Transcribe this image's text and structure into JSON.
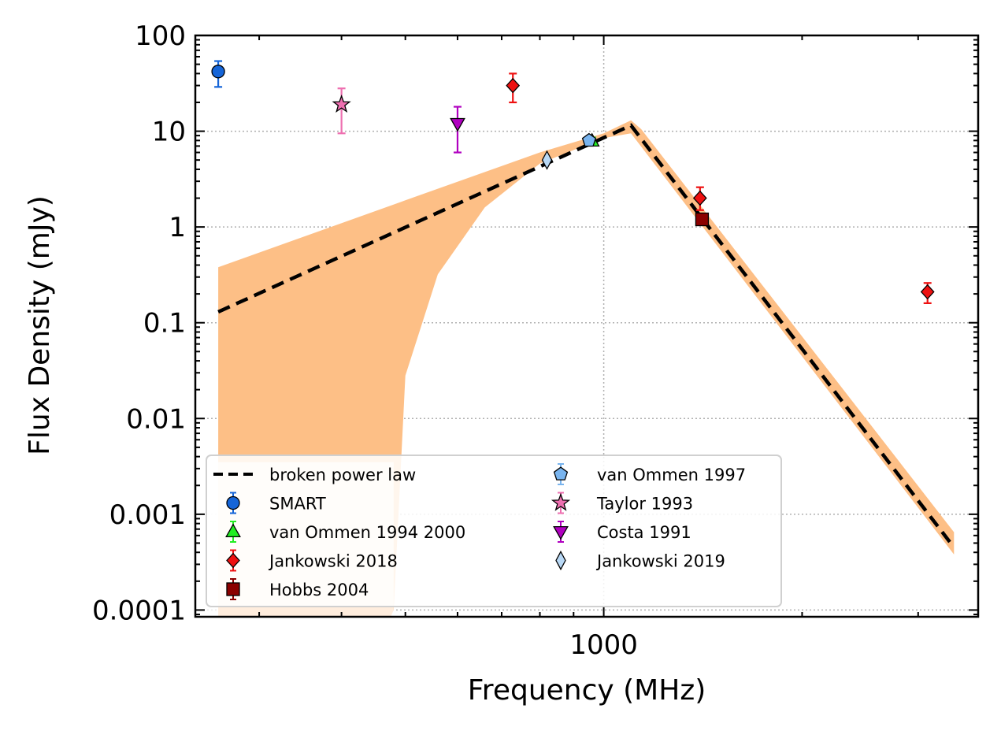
{
  "chart_data": {
    "type": "scatter",
    "xlabel": "Frequency (MHz)",
    "ylabel": "Flux Density (mJy)",
    "xscale": "log",
    "yscale": "log",
    "xlim": [
      240,
      3700
    ],
    "ylim": [
      8.5e-05,
      100
    ],
    "x_tick_labels": [
      {
        "value": 1000,
        "label": "1000"
      }
    ],
    "y_tick_labels": [
      {
        "value": 100,
        "label": "100"
      },
      {
        "value": 10,
        "label": "10"
      },
      {
        "value": 1,
        "label": "1"
      },
      {
        "value": 0.1,
        "label": "0.1"
      },
      {
        "value": 0.01,
        "label": "0.01"
      },
      {
        "value": 0.001,
        "label": "0.001"
      },
      {
        "value": 0.0001,
        "label": "0.0001"
      }
    ],
    "grid": true,
    "legend_placement": "lower-left",
    "model": {
      "name": "broken power law",
      "type": "broken power law",
      "color": "#000000",
      "points": [
        [
          260,
          0.13
        ],
        [
          1100,
          11.5
        ],
        [
          3400,
          0.00045
        ]
      ]
    },
    "uncertainty_band": {
      "color": "#fdbf86",
      "upper": [
        [
          260,
          0.38
        ],
        [
          500,
          1.9
        ],
        [
          800,
          6.0
        ],
        [
          1000,
          9.5
        ],
        [
          1100,
          13
        ],
        [
          1140,
          10.5
        ],
        [
          3400,
          0.00065
        ]
      ],
      "lower": [
        [
          3400,
          0.00038
        ],
        [
          1100,
          9.5
        ],
        [
          1000,
          8.5
        ],
        [
          800,
          4.6
        ],
        [
          660,
          1.6
        ],
        [
          560,
          0.32
        ],
        [
          500,
          0.028
        ],
        [
          480,
          0.0001
        ],
        [
          475,
          8.5e-05
        ],
        [
          260,
          8.5e-05
        ],
        [
          260,
          0.0035
        ]
      ]
    },
    "series": [
      {
        "name": "SMART",
        "marker": "circle",
        "color": "#1565d8",
        "points": [
          {
            "x": 260,
            "y": 42,
            "ylo": 29,
            "yhi": 54
          }
        ]
      },
      {
        "name": "van Ommen 1994 2000",
        "marker": "triangle-up",
        "color": "#22ee22",
        "points": [
          {
            "x": 960,
            "y": 7.9,
            "ylo": 7.3,
            "yhi": 8.6
          }
        ]
      },
      {
        "name": "Jankowski 2018",
        "marker": "diamond",
        "color": "#ee1111",
        "points": [
          {
            "x": 728,
            "y": 30,
            "ylo": 20,
            "yhi": 40
          },
          {
            "x": 1400,
            "y": 2.0,
            "ylo": 1.5,
            "yhi": 2.6
          },
          {
            "x": 3100,
            "y": 0.21,
            "ylo": 0.16,
            "yhi": 0.26
          }
        ]
      },
      {
        "name": "Hobbs 2004",
        "marker": "square",
        "color": "#8b0000",
        "points": [
          {
            "x": 1410,
            "y": 1.2,
            "ylo": 1.08,
            "yhi": 1.32
          }
        ]
      },
      {
        "name": "van Ommen 1997",
        "marker": "pentagon",
        "color": "#79b4ee",
        "points": [
          {
            "x": 950,
            "y": 8.0,
            "ylo": 7.2,
            "yhi": 8.8
          }
        ]
      },
      {
        "name": "Taylor 1993",
        "marker": "star",
        "color": "#ee6fb0",
        "points": [
          {
            "x": 400,
            "y": 19,
            "ylo": 9.5,
            "yhi": 28
          }
        ]
      },
      {
        "name": "Costa 1991",
        "marker": "triangle-down",
        "color": "#b000c0",
        "points": [
          {
            "x": 600,
            "y": 12,
            "ylo": 6,
            "yhi": 18
          }
        ]
      },
      {
        "name": "Jankowski 2019",
        "marker": "thin-diamond",
        "color": "#b8d8f5",
        "points": [
          {
            "x": 820,
            "y": 5.0
          }
        ]
      }
    ],
    "legend": {
      "columns": [
        [
          {
            "label": "broken power law",
            "marker": "dashed-line",
            "color": "#000000"
          },
          {
            "label": "SMART",
            "marker": "circle",
            "color": "#1565d8"
          },
          {
            "label": "van Ommen 1994 2000",
            "marker": "triangle-up",
            "color": "#22ee22"
          },
          {
            "label": "Jankowski 2018",
            "marker": "diamond",
            "color": "#ee1111"
          },
          {
            "label": "Hobbs 2004",
            "marker": "square",
            "color": "#8b0000"
          }
        ],
        [
          {
            "label": "van Ommen 1997",
            "marker": "pentagon",
            "color": "#79b4ee"
          },
          {
            "label": "Taylor 1993",
            "marker": "star",
            "color": "#ee6fb0"
          },
          {
            "label": "Costa 1991",
            "marker": "triangle-down",
            "color": "#b000c0"
          },
          {
            "label": "Jankowski 2019",
            "marker": "thin-diamond",
            "color": "#b8d8f5"
          }
        ]
      ]
    }
  }
}
